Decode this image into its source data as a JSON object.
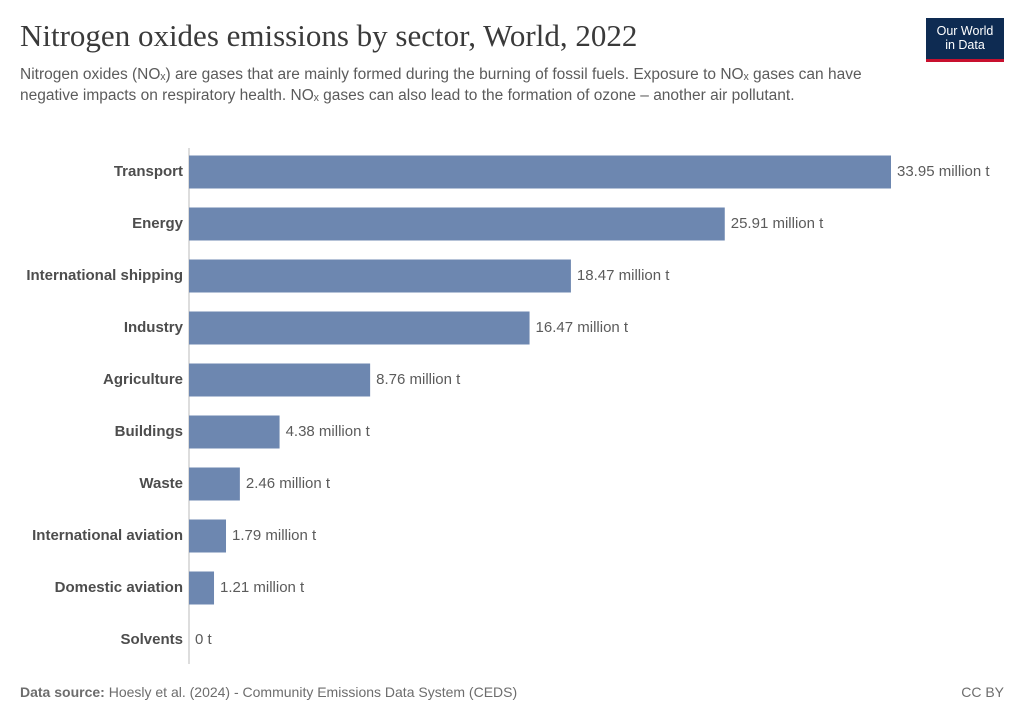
{
  "chart_data": {
    "type": "bar",
    "orientation": "horizontal",
    "title": "Nitrogen oxides emissions by sector, World, 2022",
    "subtitle": "Nitrogen oxides (NOₓ) are gases that are mainly formed during the burning of fossil fuels. Exposure to NOₓ gases can have negative impacts on respiratory health. NOₓ gases can also lead to the formation of ozone – another air pollutant.",
    "categories": [
      "Transport",
      "Energy",
      "International shipping",
      "Industry",
      "Agriculture",
      "Buildings",
      "Waste",
      "International aviation",
      "Domestic aviation",
      "Solvents"
    ],
    "values": [
      33.95,
      25.91,
      18.47,
      16.47,
      8.76,
      4.38,
      2.46,
      1.79,
      1.21,
      0
    ],
    "value_labels": [
      "33.95 million t",
      "25.91 million t",
      "18.47 million t",
      "16.47 million t",
      "8.76 million t",
      "4.38 million t",
      "2.46 million t",
      "1.79 million t",
      "1.21 million t",
      "0 t"
    ],
    "color": "#6d87b0"
  },
  "logo": {
    "line1": "Our World",
    "line2": "in Data"
  },
  "footer": {
    "source_label": "Data source:",
    "source": "Hoesly et al. (2024) - Community Emissions Data System (CEDS)",
    "license": "CC BY"
  }
}
